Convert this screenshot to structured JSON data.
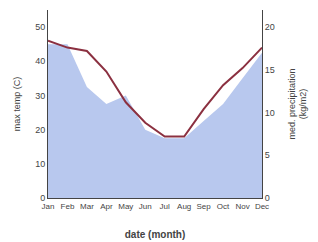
{
  "chart_data": {
    "type": "line",
    "categories": [
      "Jan",
      "Feb",
      "Mar",
      "Apr",
      "May",
      "Jun",
      "Jul",
      "Aug",
      "Sep",
      "Oct",
      "Nov",
      "Dec"
    ],
    "xlabel": "date (month)",
    "ylabel": "max temp (C)",
    "y2label": "med. precipitation\n(kg/m2)",
    "series": [
      {
        "type": "area",
        "axis": "y2",
        "color": "#b8c8ee",
        "values": [
          18,
          18,
          13,
          11,
          12,
          8,
          7,
          7,
          9,
          11,
          14,
          17
        ]
      },
      {
        "type": "line",
        "color": "#8B3040",
        "values": [
          46,
          44,
          43,
          37,
          28,
          22,
          18,
          18,
          26,
          33,
          38,
          44
        ]
      }
    ],
    "ylim": [
      0,
      55
    ],
    "yticks": [
      0,
      10,
      20,
      30,
      40,
      50
    ],
    "y2lim": [
      0,
      22
    ],
    "y2ticks": [
      0,
      5,
      10,
      15,
      20
    ],
    "grid": false
  }
}
